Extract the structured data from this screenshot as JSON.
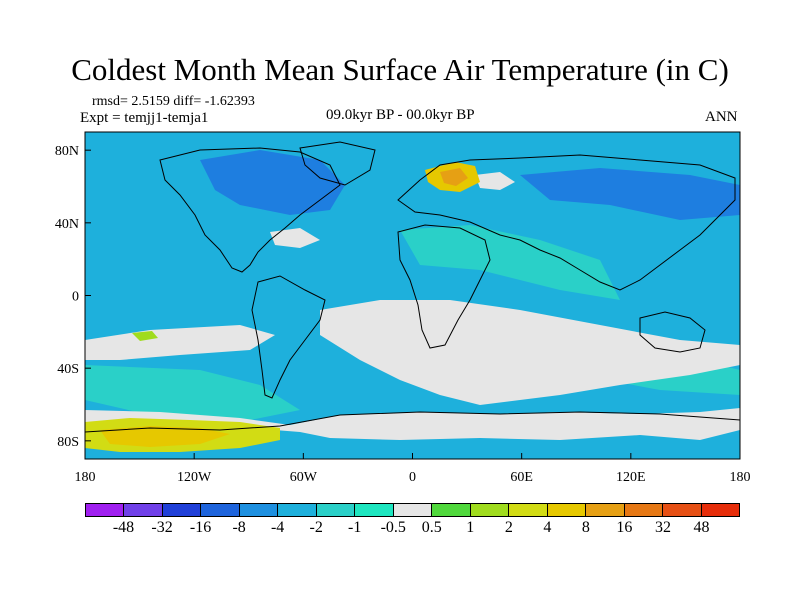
{
  "title": "Coldest Month Mean Surface Air Temperature (in C)",
  "stats_line": "rmsd= 2.5159 diff= -1.62393",
  "experiment_line": "Expt = temjj1-temja1",
  "period_line": "09.0kyr BP - 00.0kyr BP",
  "season_label": "ANN",
  "map": {
    "projection": "cylindrical-equidistant",
    "x_ticks": [
      "180",
      "120W",
      "60W",
      "0",
      "60E",
      "120E",
      "180"
    ],
    "y_ticks": [
      "80N",
      "40N",
      "0",
      "40S",
      "80S"
    ],
    "background_color": "#1eb0dc",
    "features": [
      "coastlines",
      "filled-contour temperature difference"
    ]
  },
  "colorbar": {
    "labels": [
      "-48",
      "-32",
      "-16",
      "-8",
      "-4",
      "-2",
      "-1",
      "-0.5",
      "0.5",
      "1",
      "2",
      "4",
      "8",
      "16",
      "32",
      "48"
    ],
    "colors": [
      "#a020f0",
      "#7040e8",
      "#2040d8",
      "#1e64dc",
      "#1e90e0",
      "#1eb0dc",
      "#2ad0c8",
      "#1ee6c0",
      "#e6e6e6",
      "#50d83c",
      "#a0dc1e",
      "#d2dc14",
      "#e6c800",
      "#e6a014",
      "#e67814",
      "#e65014",
      "#e62d0a"
    ]
  }
}
